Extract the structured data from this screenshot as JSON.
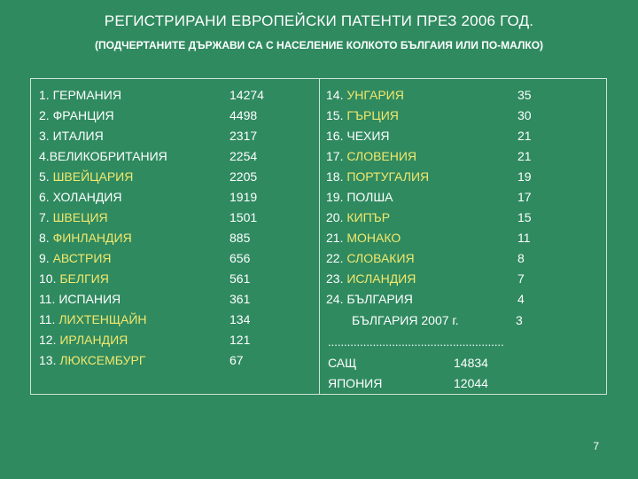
{
  "title": "РЕГИСТРИРАНИ ЕВРОПЕЙСКИ ПАТЕНТИ ПРЕЗ 2006 ГОД.",
  "subtitle": "(ПОДЧЕРТАНИТЕ ДЪРЖАВИ СА С НАСЕЛЕНИЕ КОЛКОТО БЪЛГАИЯ ИЛИ ПО-МАЛКО)",
  "colors": {
    "background": "#2f8a60",
    "text": "#ffffff",
    "highlight": "#f2e86d"
  },
  "left": [
    {
      "num": "1. ",
      "name": "ГЕРМАНИЯ",
      "value": "14274",
      "highlight": false
    },
    {
      "num": "2. ",
      "name": "ФРАНЦИЯ",
      "value": "4498",
      "highlight": false
    },
    {
      "num": "3. ",
      "name": "ИТАЛИЯ",
      "value": "2317",
      "highlight": false
    },
    {
      "num": "4.",
      "name": "ВЕЛИКОБРИТАНИЯ",
      "value": "2254",
      "highlight": false
    },
    {
      "num": "5. ",
      "name": "ШВЕЙЦАРИЯ",
      "value": "2205",
      "highlight": true
    },
    {
      "num": "6. ",
      "name": "ХОЛАНДИЯ",
      "value": "1919",
      "highlight": false
    },
    {
      "num": "7. ",
      "name": "ШВЕЦИЯ",
      "value": "1501",
      "highlight": true
    },
    {
      "num": "8. ",
      "name": "ФИНЛАНДИЯ",
      "value": "885",
      "highlight": true
    },
    {
      "num": "9. ",
      "name": "АВСТРИЯ",
      "value": "656",
      "highlight": true
    },
    {
      "num": "10. ",
      "name": "БЕЛГИЯ",
      "value": "561",
      "highlight": true
    },
    {
      "num": "11. ",
      "name": "ИСПАНИЯ",
      "value": "361",
      "highlight": false
    },
    {
      "num": "11. ",
      "name": "ЛИХТЕНЩАЙН",
      "value": "134",
      "highlight": true
    },
    {
      "num": "12. ",
      "name": "ИРЛАНДИЯ",
      "value": "121",
      "highlight": true
    },
    {
      "num": "13. ",
      "name": "ЛЮКСЕМБУРГ",
      "value": "67",
      "highlight": true
    }
  ],
  "right": [
    {
      "num": "14. ",
      "name": "УНГАРИЯ",
      "value": "35",
      "highlight": true
    },
    {
      "num": "15. ",
      "name": "ГЪРЦИЯ",
      "value": "30",
      "highlight": true
    },
    {
      "num": "16. ",
      "name": "ЧЕХИЯ",
      "value": "21",
      "highlight": false
    },
    {
      "num": "17. ",
      "name": "СЛОВЕНИЯ",
      "value": "21",
      "highlight": true
    },
    {
      "num": "18. ",
      "name": "ПОРТУГАЛИЯ",
      "value": "19",
      "highlight": true
    },
    {
      "num": "19. ",
      "name": "ПОЛША",
      "value": "17",
      "highlight": false
    },
    {
      "num": "20. ",
      "name": "КИПЪР",
      "value": "15",
      "highlight": true
    },
    {
      "num": "21. ",
      "name": "МОНАКО",
      "value": "11",
      "highlight": true
    },
    {
      "num": "22. ",
      "name": "СЛОВАКИЯ",
      "value": "8",
      "highlight": true
    },
    {
      "num": "23. ",
      "name": "ИСЛАНДИЯ",
      "value": "7",
      "highlight": true
    },
    {
      "num": "24. ",
      "name": "БЪЛГАРИЯ",
      "value": "4",
      "highlight": false
    }
  ],
  "bulgaria_2007": {
    "label": "БЪЛГАРИЯ 2007 г.",
    "value": "3"
  },
  "separator": ".......................................................",
  "others": [
    {
      "name": "САЩ",
      "value": "14834"
    },
    {
      "name": "ЯПОНИЯ",
      "value": "12044"
    }
  ],
  "page_number": "7"
}
